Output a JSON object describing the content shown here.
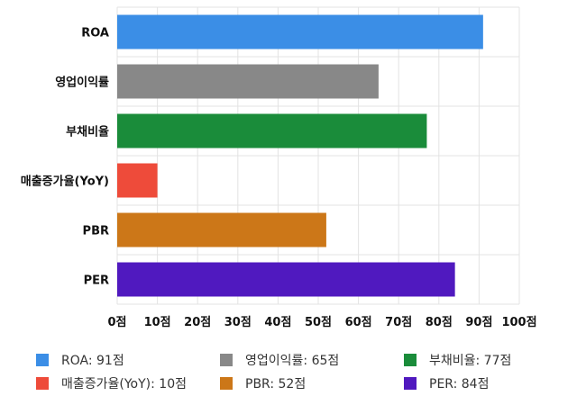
{
  "chart_data": {
    "type": "bar",
    "orientation": "horizontal",
    "categories": [
      "ROA",
      "영업이익률",
      "부채비율",
      "매출증가율(YoY)",
      "PBR",
      "PER"
    ],
    "values": [
      91,
      65,
      77,
      10,
      52,
      84
    ],
    "colors": [
      "#3b8ee6",
      "#888888",
      "#1a8c3a",
      "#ee4b3a",
      "#cc7718",
      "#5019bf"
    ],
    "xlim": [
      0,
      100
    ],
    "xticks": [
      "0점",
      "10점",
      "20점",
      "30점",
      "40점",
      "50점",
      "60점",
      "70점",
      "80점",
      "90점",
      "100점"
    ],
    "grid": true,
    "legend_position": "bottom",
    "legend": [
      "ROA: 91점",
      "영업이익률: 65점",
      "부채비율: 77점",
      "매출증가율(YoY): 10점",
      "PBR: 52점",
      "PER: 84점"
    ]
  }
}
